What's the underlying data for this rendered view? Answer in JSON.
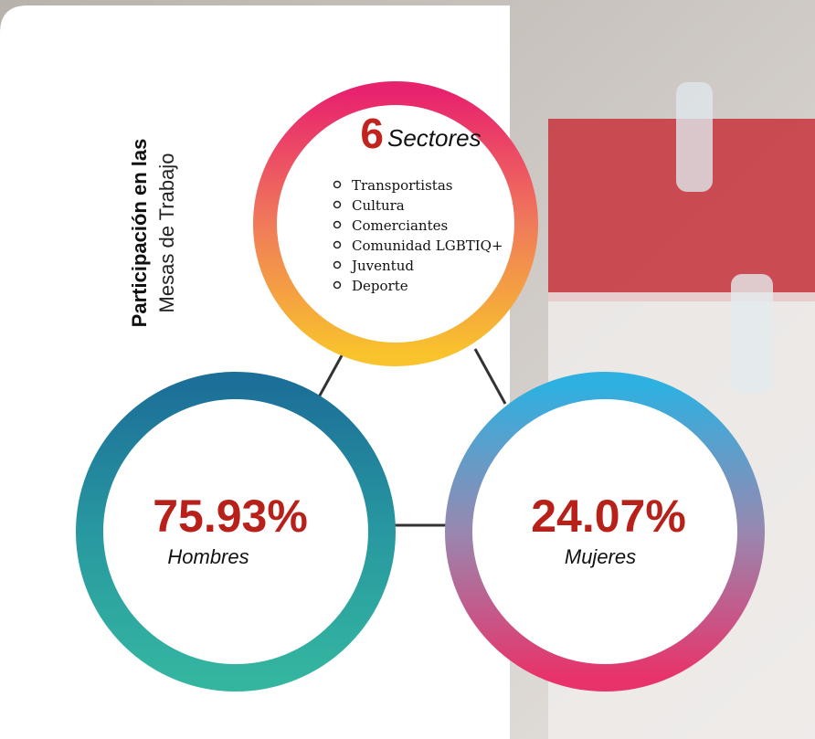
{
  "title": {
    "line1": "Participación en las",
    "line2": "Mesas de Trabajo"
  },
  "sectors": {
    "count": 6,
    "label": "Sectores",
    "items": [
      "Transportistas",
      "Cultura",
      "Comerciantes",
      "Comunidad LGBTIQ+",
      "Juventud",
      "Deporte"
    ]
  },
  "men": {
    "value": "75.93%",
    "label": "Hombres"
  },
  "women": {
    "value": "24.07%",
    "label": "Mujeres"
  }
}
